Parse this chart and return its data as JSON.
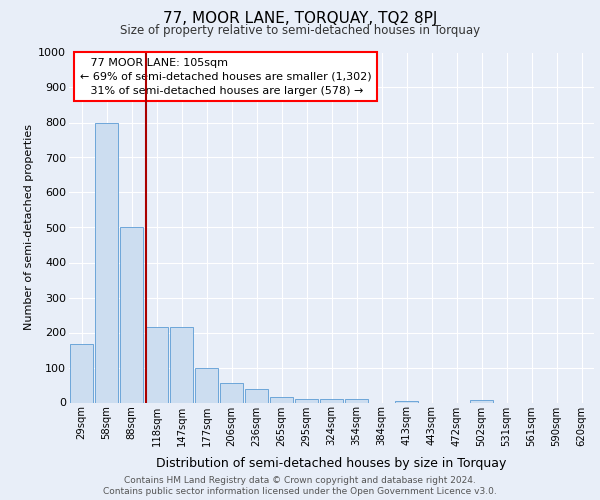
{
  "title": "77, MOOR LANE, TORQUAY, TQ2 8PJ",
  "subtitle": "Size of property relative to semi-detached houses in Torquay",
  "xlabel": "Distribution of semi-detached houses by size in Torquay",
  "ylabel": "Number of semi-detached properties",
  "categories": [
    "29sqm",
    "58sqm",
    "88sqm",
    "118sqm",
    "147sqm",
    "177sqm",
    "206sqm",
    "236sqm",
    "265sqm",
    "295sqm",
    "324sqm",
    "354sqm",
    "384sqm",
    "413sqm",
    "443sqm",
    "472sqm",
    "502sqm",
    "531sqm",
    "561sqm",
    "590sqm",
    "620sqm"
  ],
  "values": [
    168,
    800,
    500,
    215,
    215,
    100,
    55,
    38,
    15,
    10,
    10,
    10,
    0,
    5,
    0,
    0,
    8,
    0,
    0,
    0,
    0
  ],
  "bar_color": "#ccddf0",
  "bar_edge_color": "#5b9bd5",
  "property_label": "77 MOOR LANE: 105sqm",
  "pct_smaller": "69%",
  "pct_smaller_n": "1,302",
  "pct_larger": "31%",
  "pct_larger_n": "578",
  "vline_color": "#aa0000",
  "ylim": [
    0,
    1000
  ],
  "yticks": [
    0,
    100,
    200,
    300,
    400,
    500,
    600,
    700,
    800,
    900,
    1000
  ],
  "footer_line1": "Contains HM Land Registry data © Crown copyright and database right 2024.",
  "footer_line2": "Contains public sector information licensed under the Open Government Licence v3.0.",
  "bg_color": "#e8eef8",
  "plot_bg_color": "#e8eef8",
  "grid_color": "#ffffff"
}
